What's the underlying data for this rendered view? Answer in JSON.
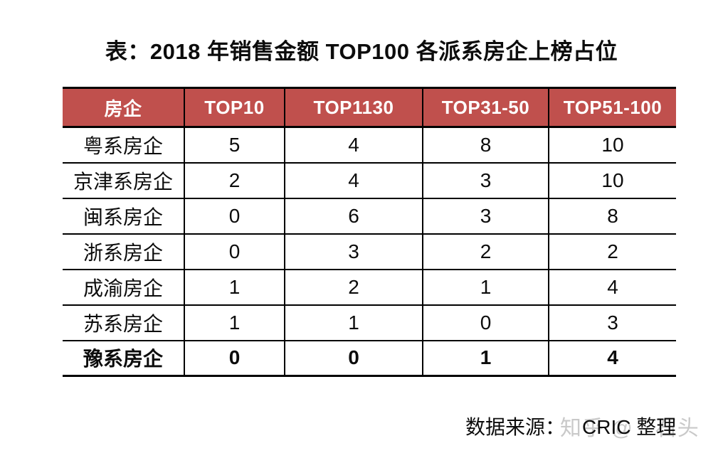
{
  "chart_data": {
    "type": "table",
    "title": "表：2018 年销售金额 TOP100 各派系房企上榜占位",
    "columns": [
      "房企",
      "TOP10",
      "TOP1130",
      "TOP31-50",
      "TOP51-100"
    ],
    "rows": [
      {
        "label": "粤系房企",
        "values": [
          5,
          4,
          8,
          10
        ],
        "bold": false
      },
      {
        "label": "京津系房企",
        "values": [
          2,
          4,
          3,
          10
        ],
        "bold": false
      },
      {
        "label": "闽系房企",
        "values": [
          0,
          6,
          3,
          8
        ],
        "bold": false
      },
      {
        "label": "浙系房企",
        "values": [
          0,
          3,
          2,
          2
        ],
        "bold": false
      },
      {
        "label": "成渝房企",
        "values": [
          1,
          2,
          1,
          4
        ],
        "bold": false
      },
      {
        "label": "苏系房企",
        "values": [
          1,
          1,
          0,
          3
        ],
        "bold": false
      },
      {
        "label": "豫系房企",
        "values": [
          0,
          0,
          1,
          4
        ],
        "bold": true
      }
    ],
    "layout": {
      "header_bg": "#c0504d",
      "header_text": "#ffffff",
      "border": "#000000",
      "outer_side_borders": false
    }
  },
  "footer": {
    "source_label": "数据来源：",
    "source_value": "CRIC 整理"
  },
  "watermark": {
    "text": "知乎 @　石头",
    "color": "#c9c9c9"
  }
}
